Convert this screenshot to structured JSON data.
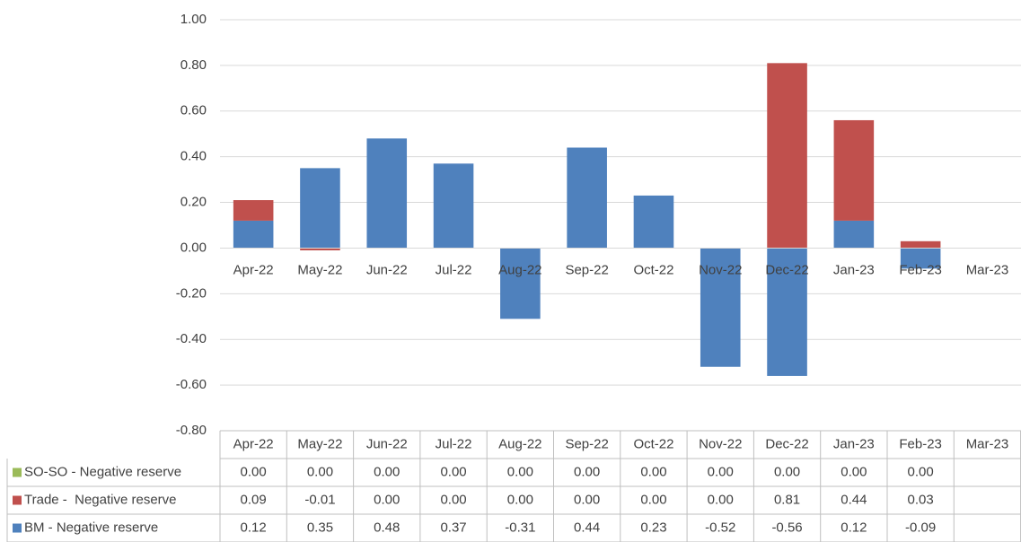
{
  "chart_data": {
    "type": "stacked_bar",
    "categories": [
      "Apr-22",
      "May-22",
      "Jun-22",
      "Jul-22",
      "Aug-22",
      "Sep-22",
      "Oct-22",
      "Nov-22",
      "Dec-22",
      "Jan-23",
      "Feb-23",
      "Mar-23"
    ],
    "series": [
      {
        "name": "BM - Negative reserve",
        "color": "#4f81bd",
        "values": [
          0.12,
          0.35,
          0.48,
          0.37,
          -0.31,
          0.44,
          0.23,
          -0.52,
          -0.56,
          0.12,
          -0.09,
          null
        ],
        "value_labels": [
          "0.12",
          "0.35",
          "0.48",
          "0.37",
          "-0.31",
          "0.44",
          "0.23",
          "-0.52",
          "-0.56",
          "0.12",
          "-0.09",
          null
        ]
      },
      {
        "name": "Trade -  Negative reserve",
        "color": "#c0504d",
        "values": [
          0.09,
          -0.01,
          0,
          0,
          0,
          0,
          0,
          0,
          0.81,
          0.44,
          0.03,
          null
        ],
        "value_labels": [
          "0.09",
          "-0.01",
          "0.00",
          "0.00",
          "0.00",
          "0.00",
          "0.00",
          "0.00",
          "0.81",
          "0.44",
          "0.03",
          null
        ]
      },
      {
        "name": "SO-SO - Negative reserve",
        "color": "#9bbb59",
        "values": [
          0,
          0,
          0,
          0,
          0,
          0,
          0,
          0,
          0,
          0,
          0,
          null
        ],
        "value_labels": [
          "0.00",
          "0.00",
          "0.00",
          "0.00",
          "0.00",
          "0.00",
          "0.00",
          "0.00",
          "0.00",
          "0.00",
          "0.00",
          null
        ]
      }
    ],
    "ylim": [
      -0.8,
      1.0
    ],
    "yticks": [
      {
        "value": -0.8,
        "label": "-0.80"
      },
      {
        "value": -0.6,
        "label": "-0.60"
      },
      {
        "value": -0.4,
        "label": "-0.40"
      },
      {
        "value": -0.2,
        "label": "-0.20"
      },
      {
        "value": 0,
        "label": "0.00"
      },
      {
        "value": 0.2,
        "label": "0.20"
      },
      {
        "value": 0.4,
        "label": "0.40"
      },
      {
        "value": 0.6,
        "label": "0.60"
      },
      {
        "value": 0.8,
        "label": "0.80"
      },
      {
        "value": 1.0,
        "label": "1.00"
      }
    ],
    "grid": true,
    "data_table": true
  }
}
